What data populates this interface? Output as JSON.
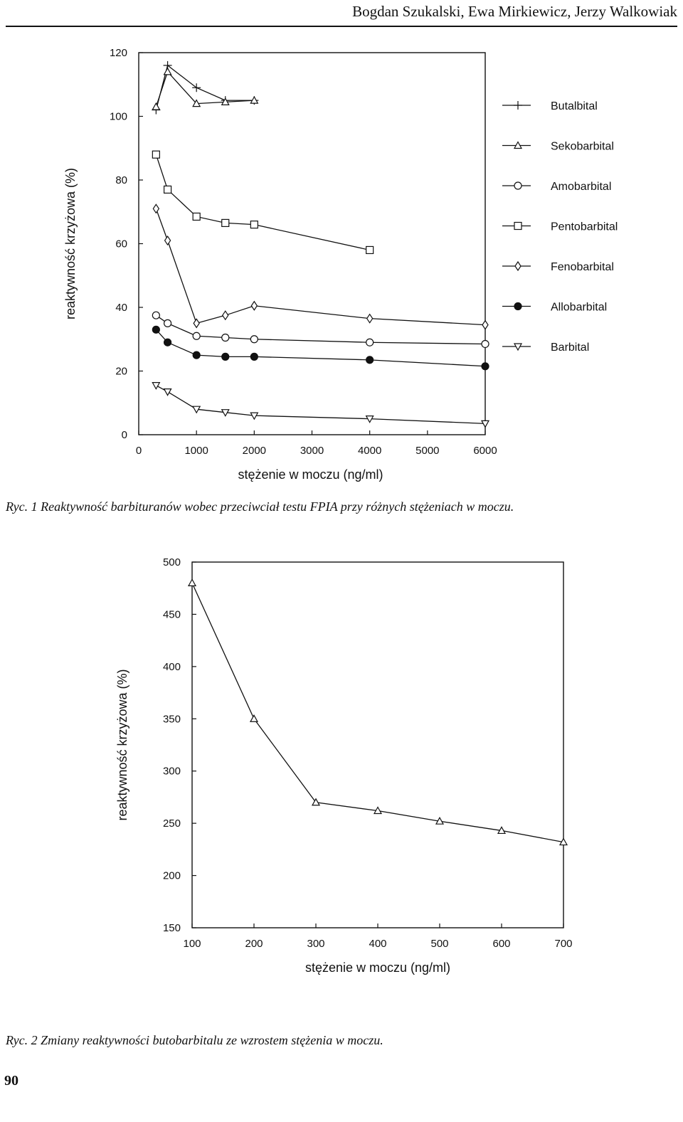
{
  "header": {
    "authors": "Bogdan Szukalski, Ewa Mirkiewicz, Jerzy Walkowiak"
  },
  "figure1": {
    "caption_prefix": "Ryc. 1",
    "caption": "Ryc. 1 Reaktywność barbituranów wobec przeciwciał testu FPIA przy różnych stężeniach w moczu."
  },
  "figure2": {
    "caption": "Ryc. 2 Zmiany reaktywności butobarbitalu ze wzrostem stężenia w moczu."
  },
  "page_number": "90",
  "chart_data": [
    {
      "type": "line",
      "title": "",
      "xlabel": "stężenie w moczu (ng/ml)",
      "ylabel": "reaktywność krzyżowa (%)",
      "xlim": [
        0,
        6000
      ],
      "ylim": [
        0,
        120
      ],
      "xticks": [
        0,
        1000,
        2000,
        3000,
        4000,
        5000,
        6000
      ],
      "yticks": [
        0,
        20,
        40,
        60,
        80,
        100,
        120
      ],
      "xtick_labels": [
        "0",
        "1000",
        "2000",
        "3000",
        "4000",
        "5000",
        "6000"
      ],
      "ytick_labels": [
        "0",
        "20",
        "40",
        "60",
        "80",
        "100",
        "120"
      ],
      "legend_position": "right",
      "grid": false,
      "series": [
        {
          "name": "Butalbital",
          "marker": "plus",
          "x": [
            300,
            500,
            1000,
            1500,
            2000
          ],
          "y": [
            102,
            116,
            109,
            105,
            105
          ]
        },
        {
          "name": "Sekobarbital",
          "marker": "triangle",
          "x": [
            300,
            500,
            1000,
            1500,
            2000
          ],
          "y": [
            103,
            114,
            104,
            104.5,
            105
          ]
        },
        {
          "name": "Amobarbital",
          "marker": "circle",
          "x": [
            300,
            500,
            1000,
            1500,
            2000,
            4000,
            6000
          ],
          "y": [
            37.5,
            35,
            31,
            30.5,
            30,
            29,
            28.5
          ]
        },
        {
          "name": "Pentobarbital",
          "marker": "square",
          "x": [
            300,
            500,
            1000,
            1500,
            2000,
            4000
          ],
          "y": [
            88,
            77,
            68.5,
            66.5,
            66,
            58
          ]
        },
        {
          "name": "Fenobarbital",
          "marker": "diamond",
          "x": [
            300,
            500,
            1000,
            1500,
            2000,
            4000,
            6000
          ],
          "y": [
            71,
            61,
            35,
            37.5,
            40.5,
            36.5,
            34.5
          ]
        },
        {
          "name": "Allobarbital",
          "marker": "filled-circle",
          "x": [
            300,
            500,
            1000,
            1500,
            2000,
            4000,
            6000
          ],
          "y": [
            33,
            29,
            25,
            24.5,
            24.5,
            23.5,
            21.5
          ]
        },
        {
          "name": "Barbital",
          "marker": "inverted-triangle",
          "x": [
            300,
            500,
            1000,
            1500,
            2000,
            4000,
            6000
          ],
          "y": [
            15.5,
            13.5,
            8,
            7,
            6,
            5,
            3.5
          ]
        }
      ]
    },
    {
      "type": "line",
      "title": "",
      "xlabel": "stężenie w moczu (ng/ml)",
      "ylabel": "reaktywność krzyżowa (%)",
      "xlim": [
        100,
        700
      ],
      "ylim": [
        150,
        500
      ],
      "xticks": [
        100,
        200,
        300,
        400,
        500,
        600,
        700
      ],
      "yticks": [
        150,
        200,
        250,
        300,
        350,
        400,
        450,
        500
      ],
      "xtick_labels": [
        "100",
        "200",
        "300",
        "400",
        "500",
        "600",
        "700"
      ],
      "ytick_labels": [
        "150",
        "200",
        "250",
        "300",
        "350",
        "400",
        "450",
        "500"
      ],
      "grid": false,
      "series": [
        {
          "marker": "triangle",
          "x": [
            100,
            200,
            300,
            400,
            500,
            600,
            700
          ],
          "y": [
            480,
            350,
            270,
            262,
            252,
            243,
            232
          ]
        }
      ]
    }
  ]
}
